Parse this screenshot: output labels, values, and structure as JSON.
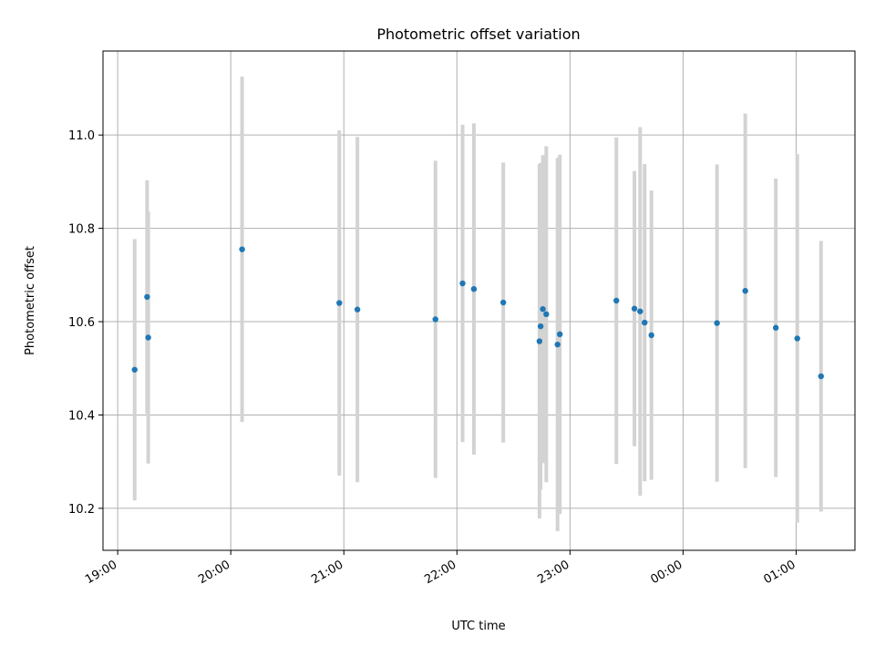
{
  "chart_data": {
    "type": "scatter",
    "title": "Photometric offset variation",
    "xlabel": "UTC time",
    "ylabel": "Photometric offset",
    "x_unit": "hours",
    "x_tick_values": [
      19,
      20,
      21,
      22,
      23,
      24,
      25
    ],
    "x_tick_labels": [
      "19:00",
      "20:00",
      "21:00",
      "22:00",
      "23:00",
      "00:00",
      "01:00"
    ],
    "y_ticks": [
      10.2,
      10.4,
      10.6,
      10.8,
      11.0
    ],
    "y_tick_labels": [
      "10.2",
      "10.4",
      "10.6",
      "10.8",
      "11.0"
    ],
    "xlim": [
      18.87,
      25.52
    ],
    "ylim": [
      10.11,
      11.18
    ],
    "grid": true,
    "marker_color": "#1f77b4",
    "errorbar_color": "#d3d3d3",
    "points": [
      {
        "x": 19.15,
        "y": 10.497,
        "err": 0.28
      },
      {
        "x": 19.26,
        "y": 10.653,
        "err": 0.25
      },
      {
        "x": 19.27,
        "y": 10.566,
        "err": 0.27
      },
      {
        "x": 20.1,
        "y": 10.755,
        "err": 0.37
      },
      {
        "x": 20.96,
        "y": 10.64,
        "err": 0.37
      },
      {
        "x": 21.12,
        "y": 10.626,
        "err": 0.37
      },
      {
        "x": 21.81,
        "y": 10.605,
        "err": 0.34
      },
      {
        "x": 22.05,
        "y": 10.682,
        "err": 0.34
      },
      {
        "x": 22.15,
        "y": 10.67,
        "err": 0.355
      },
      {
        "x": 22.41,
        "y": 10.641,
        "err": 0.3
      },
      {
        "x": 22.73,
        "y": 10.558,
        "err": 0.38
      },
      {
        "x": 22.74,
        "y": 10.59,
        "err": 0.35
      },
      {
        "x": 22.76,
        "y": 10.627,
        "err": 0.33
      },
      {
        "x": 22.79,
        "y": 10.616,
        "err": 0.36
      },
      {
        "x": 22.89,
        "y": 10.551,
        "err": 0.4
      },
      {
        "x": 22.91,
        "y": 10.573,
        "err": 0.385
      },
      {
        "x": 23.41,
        "y": 10.645,
        "err": 0.35
      },
      {
        "x": 23.57,
        "y": 10.628,
        "err": 0.295
      },
      {
        "x": 23.62,
        "y": 10.622,
        "err": 0.395
      },
      {
        "x": 23.66,
        "y": 10.598,
        "err": 0.34
      },
      {
        "x": 23.72,
        "y": 10.571,
        "err": 0.31
      },
      {
        "x": 24.3,
        "y": 10.597,
        "err": 0.34
      },
      {
        "x": 24.55,
        "y": 10.666,
        "err": 0.38
      },
      {
        "x": 24.82,
        "y": 10.587,
        "err": 0.32
      },
      {
        "x": 25.01,
        "y": 10.564,
        "err": 0.395
      },
      {
        "x": 25.22,
        "y": 10.483,
        "err": 0.29
      }
    ]
  }
}
